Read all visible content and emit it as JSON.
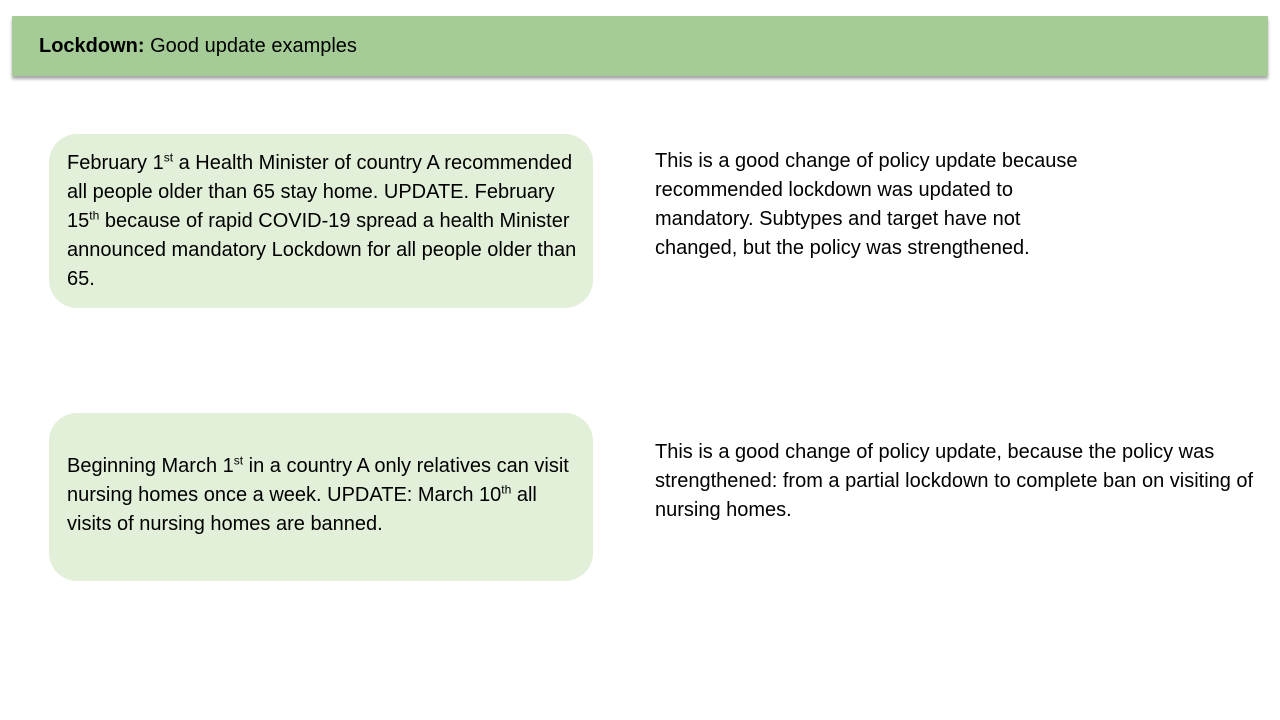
{
  "header": {
    "label": "Lockdown:",
    "title": "Good update examples",
    "color": "#a5cc96"
  },
  "examples": [
    {
      "card": {
        "seg1": "February 1",
        "sup1": "st",
        "seg2": " a Health Minister of country A recommended all people older than 65 stay home. UPDATE. February 15",
        "sup2": "th",
        "seg3": " because of rapid COVID-19 spread a health Minister announced mandatory Lockdown for all people older than 65."
      },
      "explanation": "This is a good change of policy update because recommended lockdown was updated to mandatory. Subtypes and target have not changed, but the policy was strengthened."
    },
    {
      "card": {
        "seg1": "Beginning March 1",
        "sup1": "st",
        "seg2": " in a country A only relatives can visit nursing homes once a week. UPDATE: March 10",
        "sup2": "th",
        "seg3": " all visits of nursing homes are banned."
      },
      "explanation": "This is a good change of policy update, because the policy was strengthened: from a partial lockdown to complete ban on visiting of nursing homes."
    }
  ],
  "colors": {
    "card_background": "#e2efd9"
  }
}
